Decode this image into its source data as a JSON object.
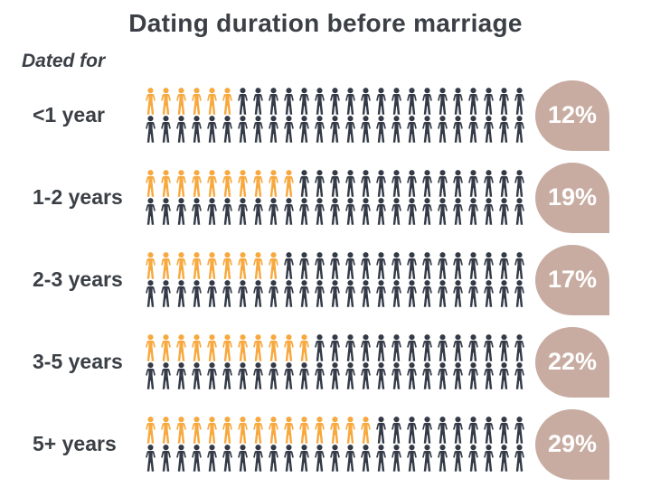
{
  "header": {
    "title": "Dating duration before marriage",
    "axis_label": "Dated for"
  },
  "chart_data": {
    "type": "bar",
    "style": "pictograph",
    "title": "Dating duration before marriage",
    "ylabel": "Dated for",
    "categories": [
      "<1 year",
      "1-2 years",
      "2-3 years",
      "3-5 years",
      "5+ years"
    ],
    "values": [
      12,
      19,
      17,
      22,
      29
    ],
    "value_labels": [
      "12%",
      "19%",
      "17%",
      "22%",
      "29%"
    ],
    "icons_total_per_row": 50,
    "icons_per_line": 25,
    "lines_per_row": 2,
    "icon_percent_value": 2,
    "highlighted_icon_counts": [
      6,
      10,
      9,
      11,
      15
    ],
    "legend_position": "none",
    "colors": {
      "highlight": "#F7A93F",
      "base": "#343B47",
      "badge_background": "#C8ACA1",
      "badge_text": "#FFFFFF",
      "title_text": "#3B4046",
      "label_text": "#3B4046",
      "background": "#FFFFFF"
    }
  }
}
